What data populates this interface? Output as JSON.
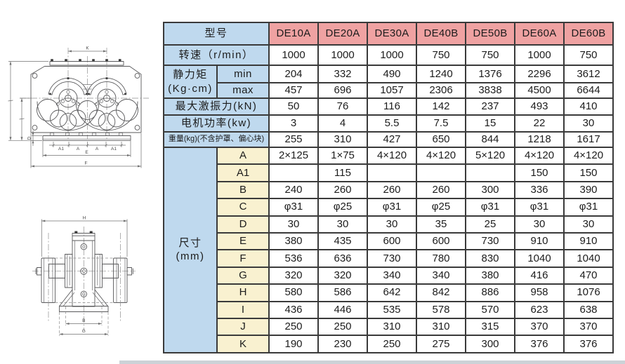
{
  "colors": {
    "header_pink": "#efa2a2",
    "label_blue": "#bfd9ee",
    "dim_cream": "#f9f1d0",
    "border": "#3a3a3a"
  },
  "table": {
    "corner_label": "型号",
    "models": [
      "DE10A",
      "DE20A",
      "DE30A",
      "DE40B",
      "DE50B",
      "DE60A",
      "DE60B"
    ],
    "spec_rows": [
      {
        "label": "转速（r/min）",
        "values": [
          "1000",
          "1000",
          "1000",
          "750",
          "750",
          "1000",
          "750"
        ]
      },
      {
        "label_line1": "静力矩",
        "label_line2": "(Kg·cm)",
        "sub_rows": [
          {
            "label": "min",
            "values": [
              "204",
              "332",
              "490",
              "1240",
              "1376",
              "2296",
              "3612"
            ]
          },
          {
            "label": "max",
            "values": [
              "457",
              "696",
              "1057",
              "2306",
              "3838",
              "4500",
              "6644"
            ]
          }
        ]
      },
      {
        "label": "最大激振力(kN)",
        "values": [
          "50",
          "76",
          "116",
          "142",
          "237",
          "493",
          "410"
        ]
      },
      {
        "label": "电机功率(kw)",
        "values": [
          "3",
          "4",
          "5.5",
          "7.5",
          "15",
          "22",
          "30"
        ]
      },
      {
        "label": "重量(kg)(不含护罩、偏心块)",
        "values": [
          "255",
          "310",
          "427",
          "650",
          "844",
          "1218",
          "1617"
        ],
        "small": true
      }
    ],
    "dim_group": {
      "label_line1": "尺寸",
      "label_line2": "(mm)"
    },
    "dim_rows": [
      {
        "label": "A",
        "values": [
          "2×125",
          "1×75",
          "4×120",
          "4×120",
          "5×120",
          "4×120",
          "4×120"
        ]
      },
      {
        "label": "A1",
        "values": [
          "",
          "115",
          "",
          "",
          "",
          "150",
          "150"
        ]
      },
      {
        "label": "B",
        "values": [
          "240",
          "260",
          "260",
          "260",
          "300",
          "336",
          "390"
        ]
      },
      {
        "label": "C",
        "values": [
          "φ31",
          "φ25",
          "φ31",
          "φ25",
          "φ31",
          "φ31",
          "φ31"
        ]
      },
      {
        "label": "D",
        "values": [
          "30",
          "30",
          "30",
          "35",
          "25",
          "30",
          "30"
        ]
      },
      {
        "label": "E",
        "values": [
          "380",
          "435",
          "600",
          "600",
          "730",
          "910",
          "910"
        ]
      },
      {
        "label": "F",
        "values": [
          "536",
          "636",
          "730",
          "780",
          "830",
          "1040",
          "1040"
        ]
      },
      {
        "label": "G",
        "values": [
          "320",
          "320",
          "340",
          "340",
          "380",
          "416",
          "470"
        ]
      },
      {
        "label": "H",
        "values": [
          "580",
          "586",
          "642",
          "842",
          "886",
          "958",
          "1076"
        ]
      },
      {
        "label": "I",
        "values": [
          "436",
          "446",
          "535",
          "578",
          "570",
          "623",
          "638"
        ]
      },
      {
        "label": "J",
        "values": [
          "250",
          "250",
          "310",
          "310",
          "315",
          "370",
          "370"
        ]
      },
      {
        "label": "K",
        "values": [
          "190",
          "230",
          "250",
          "275",
          "300",
          "376",
          "376"
        ]
      }
    ]
  },
  "drawings": {
    "top_view": {
      "k": "K",
      "a1_left": "A1",
      "a_left": "A",
      "a_right": "A",
      "a1_right": "A1",
      "e": "E",
      "f": "F",
      "d": "D"
    },
    "front_view": {
      "h": "H",
      "b": "B",
      "g": "G"
    }
  }
}
